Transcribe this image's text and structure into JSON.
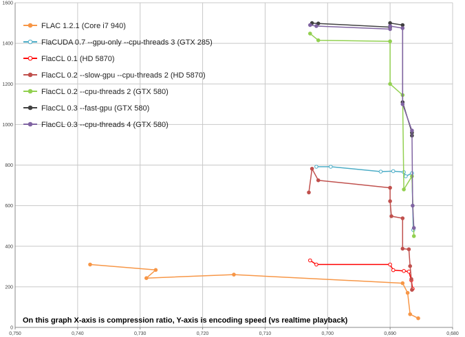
{
  "chart_data": {
    "type": "line",
    "xlim": [
      0.75,
      0.68
    ],
    "ylim": [
      0,
      1600
    ],
    "x_reversed": true,
    "grid": true,
    "legend_position": "top-left",
    "x_ticks": [
      "0,750",
      "0,740",
      "0,730",
      "0,720",
      "0,710",
      "0,700",
      "0,690",
      "0,680"
    ],
    "y_ticks": [
      "0",
      "200",
      "400",
      "600",
      "800",
      "1000",
      "1200",
      "1400",
      "1600"
    ],
    "annotation": "On this graph X-axis is compression ratio, Y-axis is encoding speed (vs realtime playback)",
    "series": [
      {
        "name": "FLAC 1.2.1 (Core i7 940)",
        "color": "#F79646",
        "marker": "filled",
        "points": [
          [
            0.738,
            310
          ],
          [
            0.7275,
            283
          ],
          [
            0.729,
            243
          ],
          [
            0.715,
            260
          ],
          [
            0.688,
            218
          ],
          [
            0.6872,
            170
          ],
          [
            0.6868,
            65
          ],
          [
            0.6855,
            45
          ]
        ]
      },
      {
        "name": "FlaCUDA 0.7 --gpu-only --cpu-threads 3 (GTX 285)",
        "color": "#4BACC6",
        "marker": "hollow",
        "points": [
          [
            0.7018,
            792
          ],
          [
            0.6995,
            792
          ],
          [
            0.6915,
            768
          ],
          [
            0.6895,
            770
          ],
          [
            0.6878,
            765
          ],
          [
            0.6875,
            745
          ],
          [
            0.6865,
            760
          ],
          [
            0.6863,
            480
          ]
        ]
      },
      {
        "name": "FlacCL 0.1 (HD 5870)",
        "color": "#FF0000",
        "marker": "hollow",
        "points": [
          [
            0.7028,
            330
          ],
          [
            0.7018,
            310
          ],
          [
            0.69,
            310
          ],
          [
            0.6895,
            282
          ],
          [
            0.6878,
            278
          ],
          [
            0.687,
            275
          ],
          [
            0.6866,
            232
          ],
          [
            0.6864,
            190
          ]
        ]
      },
      {
        "name": "FlacCL 0.2 --slow-gpu --cpu-threads 2 (HD 5870)",
        "color": "#C0504D",
        "marker": "filled",
        "points": [
          [
            0.703,
            665
          ],
          [
            0.7025,
            782
          ],
          [
            0.7015,
            725
          ],
          [
            0.69,
            688
          ],
          [
            0.69,
            622
          ],
          [
            0.6898,
            548
          ],
          [
            0.688,
            538
          ],
          [
            0.688,
            388
          ],
          [
            0.687,
            385
          ],
          [
            0.6868,
            302
          ],
          [
            0.6866,
            238
          ],
          [
            0.6865,
            185
          ]
        ]
      },
      {
        "name": "FlacCL 0.2 --cpu-threads 2 (GTX 580)",
        "color": "#92D050",
        "marker": "filled",
        "points": [
          [
            0.7028,
            1448
          ],
          [
            0.7015,
            1415
          ],
          [
            0.69,
            1410
          ],
          [
            0.69,
            1200
          ],
          [
            0.688,
            1145
          ],
          [
            0.6878,
            680
          ],
          [
            0.6865,
            745
          ],
          [
            0.6862,
            450
          ]
        ]
      },
      {
        "name": "FlacCL 0.3 --fast-gpu (GTX 580)",
        "color": "#404040",
        "marker": "filled",
        "points": [
          [
            0.7025,
            1500
          ],
          [
            0.7015,
            1498
          ],
          [
            0.69,
            1480
          ],
          [
            0.69,
            1500
          ],
          [
            0.688,
            1490
          ],
          [
            0.688,
            1110
          ],
          [
            0.6865,
            960
          ],
          [
            0.6865,
            945
          ]
        ]
      },
      {
        "name": "FlacCL 0.3 --cpu-threads 4 (GTX 580)",
        "color": "#8064A2",
        "marker": "filled",
        "points": [
          [
            0.7028,
            1490
          ],
          [
            0.7018,
            1485
          ],
          [
            0.69,
            1470
          ],
          [
            0.69,
            1485
          ],
          [
            0.688,
            1475
          ],
          [
            0.688,
            1100
          ],
          [
            0.6865,
            970
          ],
          [
            0.6864,
            600
          ],
          [
            0.6862,
            490
          ]
        ]
      }
    ]
  }
}
